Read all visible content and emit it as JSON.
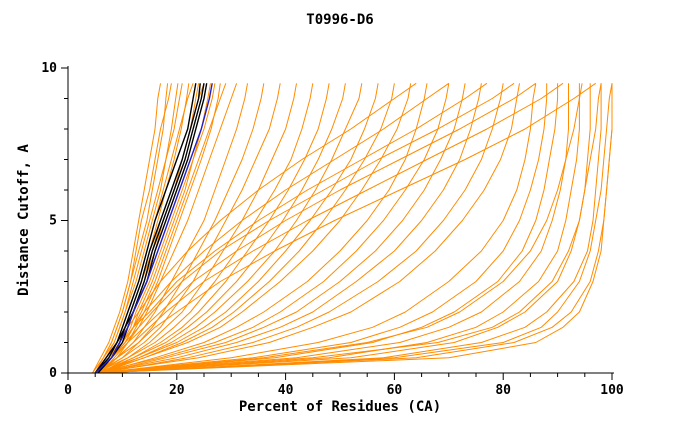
{
  "chart_data": {
    "type": "line",
    "title": "T0996-D6",
    "xlabel": "Percent of Residues (CA)",
    "ylabel": "Distance Cutoff, A",
    "xlim": [
      0,
      100
    ],
    "ylim": [
      0,
      10
    ],
    "x_ticks": [
      0,
      20,
      40,
      60,
      80,
      100
    ],
    "y_ticks": [
      0,
      5,
      10
    ],
    "x_minor_step": 5,
    "y_minor_step": 1,
    "grid": "off",
    "legend": "none",
    "colors": {
      "o": "#ff8c00",
      "k": "#000000",
      "b": "#2020cc"
    },
    "color_meaning": {
      "o": "model-curves",
      "k": "highlighted-model-curves",
      "b": "selected-model-curve"
    },
    "y_grid": [
      0,
      0.5,
      1,
      1.5,
      2,
      3,
      4,
      5,
      6,
      7,
      8,
      9,
      9.5
    ],
    "series": [
      {
        "g": "o",
        "x": [
          4.5,
          6,
          7.5,
          8.5,
          9.5,
          11,
          12,
          13,
          14,
          15,
          16,
          16.5,
          17
        ]
      },
      {
        "g": "o",
        "x": [
          5,
          6.5,
          8,
          9,
          10,
          11.5,
          13,
          14.5,
          15.5,
          16.5,
          17.5,
          18,
          18.3
        ]
      },
      {
        "g": "o",
        "x": [
          5,
          6.5,
          8,
          9,
          10,
          11.5,
          12.5,
          13.5,
          15,
          16,
          17,
          18.5,
          19
        ]
      },
      {
        "g": "o",
        "x": [
          4.5,
          6.5,
          8.5,
          9.5,
          10.5,
          12.5,
          14,
          15.5,
          17,
          18,
          19,
          19.8,
          20.2
        ]
      },
      {
        "g": "o",
        "x": [
          5,
          7,
          8.5,
          9.5,
          10.5,
          12,
          13.5,
          15,
          16.5,
          18,
          19.5,
          20.5,
          21
        ]
      },
      {
        "g": "o",
        "x": [
          5,
          7.5,
          9.5,
          10.5,
          11.5,
          13.5,
          15,
          16.5,
          18,
          19.5,
          20.8,
          21.8,
          22.2
        ]
      },
      {
        "g": "o",
        "x": [
          5.5,
          7.5,
          9,
          10,
          11,
          13,
          14.5,
          16,
          17.5,
          19,
          20.5,
          22,
          23
        ]
      },
      {
        "g": "o",
        "x": [
          5.5,
          8,
          10,
          11,
          12,
          14,
          16,
          17.5,
          19.5,
          21,
          22.5,
          23.5,
          24
        ]
      },
      {
        "g": "o",
        "x": [
          5,
          7,
          9,
          10.5,
          11.5,
          13.5,
          15.5,
          17,
          19,
          21,
          22.5,
          24,
          25
        ]
      },
      {
        "g": "o",
        "x": [
          5,
          8,
          10.5,
          12,
          13,
          15.5,
          17.5,
          19.5,
          21.5,
          23,
          24.5,
          25.7,
          26.2
        ]
      },
      {
        "g": "o",
        "x": [
          5.5,
          8,
          10,
          11.5,
          12.5,
          15,
          17,
          19,
          21,
          23,
          25,
          26.5,
          27
        ]
      },
      {
        "g": "o",
        "x": [
          6,
          8.5,
          11,
          12.5,
          14,
          16.5,
          18.5,
          20.5,
          22.5,
          24.5,
          26.3,
          27.6,
          28
        ]
      },
      {
        "g": "o",
        "x": [
          5,
          8,
          10.5,
          12,
          13.5,
          16,
          18,
          20,
          22,
          24,
          26,
          28,
          29
        ]
      },
      {
        "g": "o",
        "x": [
          6,
          9,
          11,
          13,
          14.5,
          17,
          19.5,
          22,
          24,
          26,
          28,
          30,
          31
        ]
      },
      {
        "g": "o",
        "x": [
          5,
          9,
          12,
          14,
          16,
          19,
          22,
          25,
          27,
          29,
          31,
          32.5,
          33
        ]
      },
      {
        "g": "o",
        "x": [
          5.5,
          10,
          13,
          15.5,
          17.5,
          21,
          24,
          27,
          29.5,
          32,
          34,
          35.5,
          36
        ]
      },
      {
        "g": "o",
        "x": [
          5,
          10,
          14,
          17,
          19,
          23,
          26,
          29,
          32,
          34.5,
          37,
          38.5,
          39
        ]
      },
      {
        "g": "o",
        "x": [
          6,
          11,
          15,
          18,
          21,
          25,
          28.5,
          32,
          35,
          37.5,
          40,
          41.5,
          42
        ]
      },
      {
        "g": "o",
        "x": [
          5,
          11,
          16,
          19.5,
          22.5,
          27,
          31,
          34.5,
          38,
          41,
          43,
          44.5,
          45
        ]
      },
      {
        "g": "o",
        "x": [
          6,
          12,
          17,
          21,
          24,
          29,
          33,
          37,
          40.5,
          43.5,
          46,
          47.5,
          48
        ]
      },
      {
        "g": "o",
        "x": [
          5.5,
          12,
          18,
          22,
          25.5,
          31,
          35.5,
          39.5,
          43,
          46,
          48.5,
          50.5,
          51
        ]
      },
      {
        "g": "o",
        "x": [
          6,
          13,
          19,
          23.5,
          27,
          33,
          38,
          42,
          45.5,
          48.5,
          51,
          53.5,
          54
        ]
      },
      {
        "g": "o",
        "x": [
          5,
          13,
          20,
          25,
          29,
          35,
          40,
          44.5,
          48.5,
          52,
          54.5,
          56.5,
          57
        ]
      },
      {
        "g": "o",
        "x": [
          6,
          14,
          21,
          26.5,
          30.5,
          37,
          42.5,
          47,
          51,
          54.5,
          57.5,
          59.5,
          60
        ]
      },
      {
        "g": "o",
        "x": [
          5.5,
          14,
          22,
          28,
          32,
          39,
          45,
          50,
          54,
          57.5,
          60.5,
          62.5,
          63
        ]
      },
      {
        "g": "o",
        "x": [
          6,
          16,
          25,
          31,
          36,
          44,
          50,
          55,
          59,
          62,
          64,
          65.5,
          66
        ]
      },
      {
        "g": "o",
        "x": [
          5,
          17,
          27,
          34,
          39,
          47,
          53,
          58,
          62,
          65.5,
          68,
          69.5,
          70
        ]
      },
      {
        "g": "o",
        "x": [
          6,
          18,
          29,
          36,
          42,
          50,
          56.5,
          61.5,
          65.5,
          68.5,
          71,
          72.5,
          73
        ]
      },
      {
        "g": "o",
        "x": [
          5.5,
          20,
          31,
          39,
          45,
          53,
          60,
          65,
          69,
          72,
          74,
          75.5,
          76
        ]
      },
      {
        "g": "o",
        "x": [
          6,
          22,
          34,
          42,
          48,
          57,
          64,
          69,
          73,
          76,
          78,
          79.5,
          80
        ]
      },
      {
        "g": "o",
        "x": [
          5,
          24,
          37,
          45,
          52,
          61,
          67.5,
          72.5,
          76.5,
          79.5,
          81.5,
          82.5,
          83
        ]
      },
      {
        "g": "o",
        "x": [
          6,
          30,
          46,
          56,
          62,
          70,
          76,
          80,
          82.5,
          84,
          85,
          85.5,
          86
        ]
      },
      {
        "g": "o",
        "x": [
          5,
          34,
          52,
          61,
          67,
          75,
          80,
          83,
          85,
          86.5,
          87.5,
          88,
          88
        ]
      },
      {
        "g": "o",
        "x": [
          6,
          38,
          56,
          65,
          71,
          79,
          83.5,
          86,
          87.5,
          88.5,
          89.5,
          90,
          90
        ]
      },
      {
        "g": "o",
        "x": [
          5,
          42,
          61,
          70,
          76,
          83,
          87,
          89,
          90.5,
          91.5,
          92,
          92,
          92
        ]
      },
      {
        "g": "o",
        "x": [
          6,
          48,
          66,
          75,
          80,
          86.5,
          90,
          91.5,
          92.5,
          93.5,
          94,
          94,
          94
        ]
      },
      {
        "g": "o",
        "x": [
          5,
          52,
          71,
          79,
          84,
          90,
          92.5,
          94,
          95,
          95.5,
          96,
          96,
          96
        ]
      },
      {
        "g": "o",
        "x": [
          6,
          58,
          76,
          84,
          88,
          93,
          95.5,
          96.5,
          97,
          97.5,
          98,
          98,
          98
        ]
      },
      {
        "g": "o",
        "x": [
          5,
          64,
          82,
          89,
          92.5,
          96,
          97.5,
          98.5,
          99,
          99.5,
          100,
          100,
          100
        ]
      },
      {
        "g": "o",
        "x": [
          5,
          70,
          86,
          91,
          94,
          96.5,
          98,
          98.5,
          99,
          99.5,
          100,
          100,
          100
        ]
      },
      {
        "g": "o",
        "x": [
          6,
          60,
          80,
          87,
          90,
          94,
          96,
          97,
          98,
          98.5,
          99,
          99.5,
          100
        ]
      },
      {
        "g": "o",
        "x": [
          5,
          45,
          68,
          78,
          83,
          89,
          92,
          94,
          95,
          96,
          97,
          97.5,
          98
        ]
      },
      {
        "g": "o",
        "x": [
          6,
          36,
          55,
          66,
          72,
          80,
          85,
          88,
          90,
          91.5,
          93,
          94,
          94.5
        ]
      },
      {
        "g": "o",
        "x": [
          5,
          7,
          9,
          11,
          13,
          17,
          22,
          28,
          35,
          43,
          52,
          60,
          64
        ]
      },
      {
        "g": "o",
        "x": [
          5.5,
          8,
          10,
          12,
          14,
          19,
          25,
          32,
          40,
          49,
          58,
          66,
          70
        ]
      },
      {
        "g": "o",
        "x": [
          5,
          7.5,
          10,
          12,
          15,
          20,
          27,
          35,
          44,
          54,
          64,
          73,
          77
        ]
      },
      {
        "g": "o",
        "x": [
          6,
          8,
          10.5,
          13,
          15.5,
          21,
          28,
          37,
          47,
          57,
          68,
          78,
          82
        ]
      },
      {
        "g": "o",
        "x": [
          5,
          8,
          11,
          14,
          17,
          23,
          31,
          40,
          50,
          61,
          72,
          82,
          86
        ]
      },
      {
        "g": "o",
        "x": [
          5.5,
          9,
          12,
          15,
          18,
          25,
          34,
          44,
          55,
          66,
          77,
          87,
          91
        ]
      },
      {
        "g": "o",
        "x": [
          5,
          9,
          13,
          16,
          20,
          28,
          38,
          49,
          61,
          73,
          84,
          93,
          97
        ]
      },
      {
        "g": "k",
        "x": [
          5,
          7.5,
          9,
          10,
          11,
          13,
          14.5,
          16,
          18,
          20,
          22,
          23,
          23.5
        ]
      },
      {
        "g": "k",
        "x": [
          5,
          8,
          9.5,
          10.5,
          11.5,
          13.5,
          15,
          17,
          19,
          21,
          22.5,
          24,
          24.3
        ]
      },
      {
        "g": "k",
        "x": [
          5.5,
          8,
          10,
          11,
          12,
          14,
          15.5,
          17.5,
          19.5,
          21.5,
          23,
          24.5,
          25
        ]
      },
      {
        "g": "k",
        "x": [
          5,
          7,
          9,
          10.5,
          12,
          14.5,
          16,
          18,
          20,
          22,
          23.5,
          25,
          25.5
        ]
      },
      {
        "g": "b",
        "x": [
          5,
          8,
          9.5,
          11,
          12,
          14.5,
          16.5,
          18.5,
          20.5,
          22.5,
          24.5,
          26,
          26.5
        ]
      }
    ]
  }
}
